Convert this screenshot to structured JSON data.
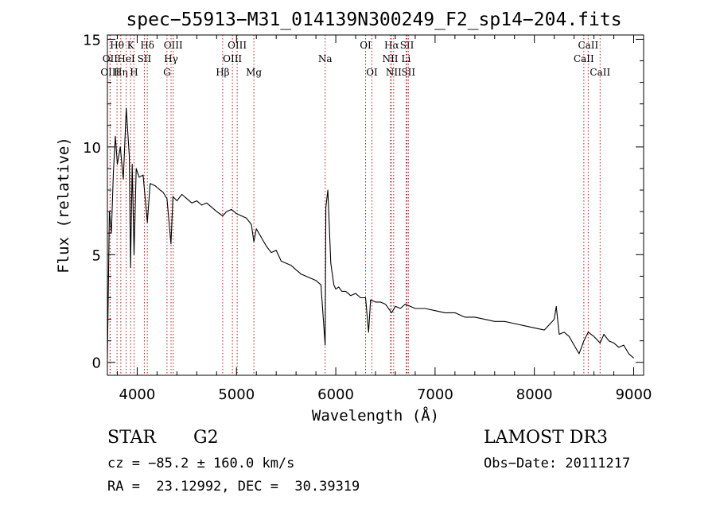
{
  "chart_data": {
    "type": "line",
    "title": "spec−55913−M31_014139N300249_F2_sp14−204.fits",
    "xlabel": "Wavelength (Å)",
    "ylabel": "Flux (relative)",
    "xlim": [
      3700,
      9100
    ],
    "ylim": [
      -0.6,
      15.2
    ],
    "xticks": [
      4000,
      5000,
      6000,
      7000,
      8000,
      9000
    ],
    "xtick_labels": [
      "4000",
      "5000",
      "6000",
      "7000",
      "8000",
      "9000"
    ],
    "yticks": [
      0,
      5,
      10,
      15
    ],
    "ytick_labels": [
      "0",
      "5",
      "10",
      "15"
    ],
    "series": [
      {
        "name": "spectrum",
        "x": [
          3700,
          3720,
          3740,
          3760,
          3780,
          3800,
          3830,
          3860,
          3890,
          3920,
          3933,
          3950,
          3968,
          3990,
          4020,
          4060,
          4102,
          4130,
          4180,
          4230,
          4260,
          4300,
          4340,
          4360,
          4400,
          4450,
          4500,
          4550,
          4600,
          4650,
          4700,
          4750,
          4800,
          4861,
          4900,
          4950,
          5000,
          5050,
          5100,
          5150,
          5175,
          5200,
          5250,
          5300,
          5350,
          5400,
          5450,
          5500,
          5550,
          5600,
          5650,
          5700,
          5750,
          5800,
          5850,
          5893,
          5900,
          5920,
          5950,
          5980,
          6000,
          6030,
          6060,
          6100,
          6150,
          6200,
          6250,
          6300,
          6330,
          6350,
          6400,
          6450,
          6500,
          6563,
          6600,
          6650,
          6700,
          6750,
          6800,
          6900,
          7000,
          7100,
          7200,
          7300,
          7400,
          7500,
          7600,
          7700,
          7800,
          7900,
          8000,
          8100,
          8200,
          8220,
          8250,
          8300,
          8350,
          8400,
          8450,
          8498,
          8542,
          8600,
          8662,
          8700,
          8750,
          8800,
          8850,
          8900,
          8950,
          9000
        ],
        "y": [
          0.2,
          7.0,
          6.0,
          8.8,
          10.5,
          9.2,
          10.0,
          8.5,
          11.8,
          9.6,
          4.4,
          9.2,
          5.0,
          9.0,
          8.6,
          8.7,
          6.5,
          8.3,
          8.2,
          8.0,
          7.9,
          7.6,
          5.5,
          7.7,
          7.5,
          7.8,
          7.6,
          7.4,
          7.5,
          7.3,
          7.4,
          7.2,
          7.0,
          6.8,
          7.0,
          7.1,
          6.9,
          6.8,
          6.7,
          6.4,
          5.6,
          6.2,
          5.8,
          5.4,
          5.1,
          5.2,
          4.7,
          4.6,
          4.5,
          4.3,
          4.1,
          4.0,
          3.9,
          3.8,
          3.6,
          0.8,
          7.2,
          8.0,
          4.6,
          3.6,
          3.4,
          3.5,
          3.3,
          3.3,
          3.1,
          3.2,
          3.0,
          3.0,
          1.4,
          2.9,
          2.8,
          2.8,
          2.7,
          2.3,
          2.6,
          2.5,
          2.7,
          2.6,
          2.5,
          2.5,
          2.4,
          2.3,
          2.3,
          2.1,
          2.1,
          2.0,
          1.9,
          1.9,
          1.8,
          1.7,
          1.6,
          1.5,
          2.0,
          2.6,
          1.3,
          1.4,
          1.2,
          0.8,
          0.4,
          1.0,
          1.4,
          1.2,
          0.9,
          1.3,
          1.0,
          0.9,
          0.7,
          0.8,
          0.4,
          0.2
        ]
      }
    ],
    "line_markers": [
      {
        "label": "Hθ",
        "x": 3797,
        "row": 1
      },
      {
        "label": "OII",
        "x": 3727,
        "row": 2
      },
      {
        "label": "OIII",
        "x": 3727,
        "row": 3
      },
      {
        "label": "Hη",
        "x": 3835,
        "row": 3
      },
      {
        "label": "HeI",
        "x": 3889,
        "row": 2
      },
      {
        "label": "K",
        "x": 3934,
        "row": 1
      },
      {
        "label": "H",
        "x": 3968,
        "row": 3
      },
      {
        "label": "SII",
        "x": 4072,
        "row": 2
      },
      {
        "label": "Hδ",
        "x": 4102,
        "row": 1
      },
      {
        "label": "OIII",
        "x": 4363,
        "row": 1
      },
      {
        "label": "Hγ",
        "x": 4341,
        "row": 2
      },
      {
        "label": "G",
        "x": 4300,
        "row": 3
      },
      {
        "label": "Hβ",
        "x": 4861,
        "row": 3
      },
      {
        "label": "OIII",
        "x": 5007,
        "row": 1
      },
      {
        "label": "OIII",
        "x": 4959,
        "row": 2
      },
      {
        "label": "Mg",
        "x": 5175,
        "row": 3
      },
      {
        "label": "Na",
        "x": 5893,
        "row": 2
      },
      {
        "label": "OI",
        "x": 6300,
        "row": 1
      },
      {
        "label": "OI",
        "x": 6364,
        "row": 3
      },
      {
        "label": "Hα",
        "x": 6563,
        "row": 1
      },
      {
        "label": "NII",
        "x": 6548,
        "row": 2
      },
      {
        "label": "NII",
        "x": 6583,
        "row": 3
      },
      {
        "label": "SII",
        "x": 6717,
        "row": 1
      },
      {
        "label": "Li",
        "x": 6708,
        "row": 2
      },
      {
        "label": "SII",
        "x": 6731,
        "row": 3
      },
      {
        "label": "CaII",
        "x": 8542,
        "row": 1
      },
      {
        "label": "CaII",
        "x": 8498,
        "row": 2
      },
      {
        "label": "CaII",
        "x": 8662,
        "row": 3
      }
    ]
  },
  "info": {
    "object_class": "STAR",
    "subclass": "G2",
    "survey": "LAMOST DR3",
    "cz": "cz = −85.2 ± 160.0 km/s",
    "obs_date": "Obs−Date: 20111217",
    "coords": "RA =  23.12992, DEC =  30.39319"
  },
  "colors": {
    "marker_line": "#b02020",
    "spectrum": "#000000",
    "axis": "#000000"
  }
}
